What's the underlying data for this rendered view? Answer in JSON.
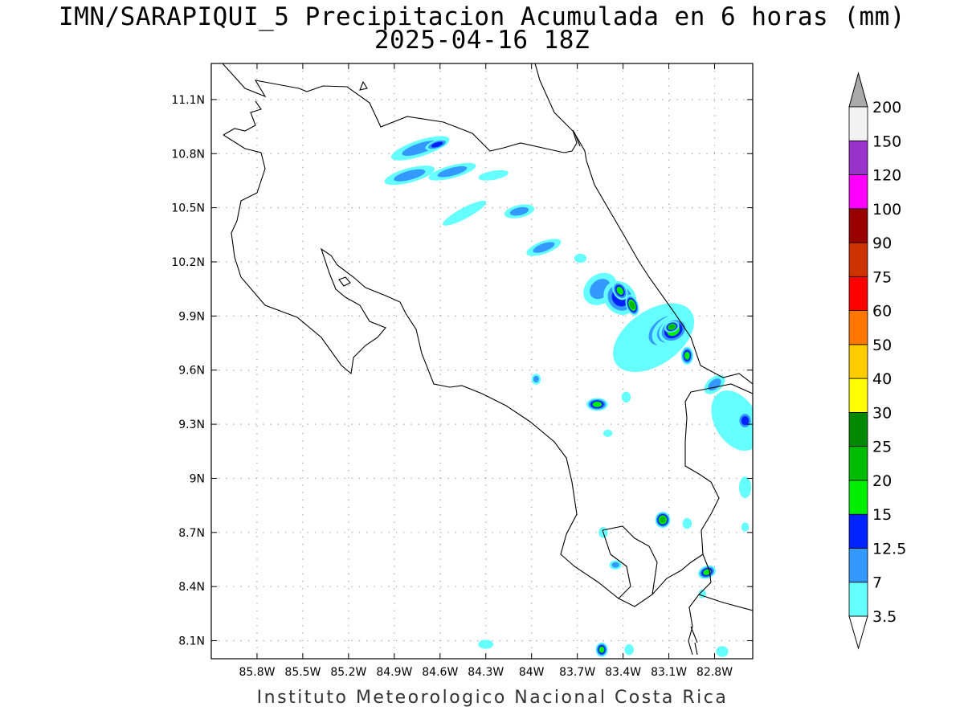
{
  "title": "IMN/SARAPIQUI_5 Precipitacion Acumulada en 6 horas (mm)",
  "subtitle": "2025-04-16 18Z",
  "credit": "Instituto Meteorologico Nacional Costa Rica",
  "map": {
    "lon_range": [
      -86.1,
      -82.55
    ],
    "lat_range": [
      8.0,
      11.3
    ],
    "lat_ticks": [
      {
        "value": 11.1,
        "label": "11.1N"
      },
      {
        "value": 10.8,
        "label": "10.8N"
      },
      {
        "value": 10.5,
        "label": "10.5N"
      },
      {
        "value": 10.2,
        "label": "10.2N"
      },
      {
        "value": 9.9,
        "label": "9.9N"
      },
      {
        "value": 9.6,
        "label": "9.6N"
      },
      {
        "value": 9.3,
        "label": "9.3N"
      },
      {
        "value": 9.0,
        "label": "9N"
      },
      {
        "value": 8.7,
        "label": "8.7N"
      },
      {
        "value": 8.4,
        "label": "8.4N"
      },
      {
        "value": 8.1,
        "label": "8.1N"
      }
    ],
    "lon_ticks": [
      {
        "value": -85.8,
        "label": "85.8W"
      },
      {
        "value": -85.5,
        "label": "85.5W"
      },
      {
        "value": -85.2,
        "label": "85.2W"
      },
      {
        "value": -84.9,
        "label": "84.9W"
      },
      {
        "value": -84.6,
        "label": "84.6W"
      },
      {
        "value": -84.3,
        "label": "84.3W"
      },
      {
        "value": -84.0,
        "label": "84W"
      },
      {
        "value": -83.7,
        "label": "83.7W"
      },
      {
        "value": -83.4,
        "label": "83.4W"
      },
      {
        "value": -83.1,
        "label": "83.1W"
      },
      {
        "value": -82.8,
        "label": "82.8W"
      }
    ],
    "grid": "dotted"
  },
  "colorbar": {
    "levels": [
      "3.5",
      "7",
      "12.5",
      "15",
      "20",
      "25",
      "30",
      "40",
      "50",
      "60",
      "75",
      "90",
      "100",
      "120",
      "150",
      "200"
    ],
    "colors": [
      "#66ffff",
      "#3399ff",
      "#0022ff",
      "#00ee00",
      "#00bb00",
      "#008800",
      "#ffff00",
      "#ffcc00",
      "#ff7700",
      "#ff0000",
      "#cc3300",
      "#990000",
      "#ff00ff",
      "#9933cc",
      "#f2f2f2"
    ],
    "under_color": "#ffffff",
    "over_color": "#aaaaaa"
  },
  "precip_cells": [
    {
      "lon": -84.73,
      "lat": 10.83,
      "rx": 0.2,
      "ry": 0.045,
      "rot": -18,
      "level": 1
    },
    {
      "lon": -84.62,
      "lat": 10.85,
      "rx": 0.08,
      "ry": 0.025,
      "rot": -18,
      "level": 2
    },
    {
      "lon": -84.8,
      "lat": 10.68,
      "rx": 0.17,
      "ry": 0.04,
      "rot": -15,
      "level": 1
    },
    {
      "lon": -84.52,
      "lat": 10.7,
      "rx": 0.16,
      "ry": 0.035,
      "rot": -15,
      "level": 1
    },
    {
      "lon": -84.25,
      "lat": 10.68,
      "rx": 0.1,
      "ry": 0.025,
      "rot": -10,
      "level": 0
    },
    {
      "lon": -84.44,
      "lat": 10.47,
      "rx": 0.16,
      "ry": 0.03,
      "rot": -28,
      "level": 0
    },
    {
      "lon": -84.08,
      "lat": 10.48,
      "rx": 0.1,
      "ry": 0.035,
      "rot": -12,
      "level": 1
    },
    {
      "lon": -83.92,
      "lat": 10.28,
      "rx": 0.12,
      "ry": 0.035,
      "rot": -20,
      "level": 1
    },
    {
      "lon": -83.68,
      "lat": 10.22,
      "rx": 0.04,
      "ry": 0.025,
      "rot": 0,
      "level": 0
    },
    {
      "lon": -83.55,
      "lat": 10.05,
      "rx": 0.12,
      "ry": 0.08,
      "rot": -40,
      "level": 1
    },
    {
      "lon": -83.42,
      "lat": 10.0,
      "rx": 0.1,
      "ry": 0.1,
      "rot": -40,
      "level": 2
    },
    {
      "lon": -83.42,
      "lat": 10.04,
      "rx": 0.045,
      "ry": 0.055,
      "rot": -30,
      "level": 3
    },
    {
      "lon": -83.34,
      "lat": 9.96,
      "rx": 0.04,
      "ry": 0.06,
      "rot": -20,
      "level": 4
    },
    {
      "lon": -83.2,
      "lat": 9.78,
      "rx": 0.3,
      "ry": 0.15,
      "rot": -35,
      "level": 0
    },
    {
      "lon": -83.12,
      "lat": 9.82,
      "rx": 0.2,
      "ry": 0.11,
      "rot": -35,
      "level": 1
    },
    {
      "lon": -83.08,
      "lat": 9.82,
      "rx": 0.14,
      "ry": 0.08,
      "rot": -30,
      "level": 2
    },
    {
      "lon": -83.07,
      "lat": 9.82,
      "rx": 0.1,
      "ry": 0.065,
      "rot": -30,
      "level": 3
    },
    {
      "lon": -83.08,
      "lat": 9.84,
      "rx": 0.05,
      "ry": 0.03,
      "rot": -20,
      "level": 4
    },
    {
      "lon": -82.98,
      "lat": 9.68,
      "rx": 0.04,
      "ry": 0.05,
      "rot": 0,
      "level": 3
    },
    {
      "lon": -82.8,
      "lat": 9.52,
      "rx": 0.08,
      "ry": 0.04,
      "rot": -40,
      "level": 1
    },
    {
      "lon": -82.66,
      "lat": 9.32,
      "rx": 0.14,
      "ry": 0.18,
      "rot": -30,
      "level": 0
    },
    {
      "lon": -82.6,
      "lat": 9.32,
      "rx": 0.05,
      "ry": 0.05,
      "rot": 0,
      "level": 2
    },
    {
      "lon": -82.6,
      "lat": 8.95,
      "rx": 0.04,
      "ry": 0.06,
      "rot": 0,
      "level": 0
    },
    {
      "lon": -83.97,
      "lat": 9.55,
      "rx": 0.03,
      "ry": 0.03,
      "rot": 0,
      "level": 1
    },
    {
      "lon": -83.57,
      "lat": 9.41,
      "rx": 0.07,
      "ry": 0.035,
      "rot": 0,
      "level": 3
    },
    {
      "lon": -83.5,
      "lat": 9.25,
      "rx": 0.03,
      "ry": 0.02,
      "rot": 0,
      "level": 0
    },
    {
      "lon": -83.38,
      "lat": 9.45,
      "rx": 0.03,
      "ry": 0.03,
      "rot": 0,
      "level": 0
    },
    {
      "lon": -83.14,
      "lat": 8.77,
      "rx": 0.05,
      "ry": 0.045,
      "rot": 0,
      "level": 4
    },
    {
      "lon": -82.98,
      "lat": 8.75,
      "rx": 0.03,
      "ry": 0.03,
      "rot": 0,
      "level": 0
    },
    {
      "lon": -82.85,
      "lat": 8.48,
      "rx": 0.06,
      "ry": 0.035,
      "rot": -20,
      "level": 3
    },
    {
      "lon": -83.45,
      "lat": 8.52,
      "rx": 0.04,
      "ry": 0.025,
      "rot": 0,
      "level": 1
    },
    {
      "lon": -83.53,
      "lat": 8.7,
      "rx": 0.03,
      "ry": 0.03,
      "rot": 0,
      "level": 0
    },
    {
      "lon": -84.3,
      "lat": 8.08,
      "rx": 0.05,
      "ry": 0.025,
      "rot": 0,
      "level": 0
    },
    {
      "lon": -83.54,
      "lat": 8.05,
      "rx": 0.04,
      "ry": 0.04,
      "rot": 0,
      "level": 3
    },
    {
      "lon": -83.36,
      "lat": 8.05,
      "rx": 0.03,
      "ry": 0.03,
      "rot": 0,
      "level": 0
    },
    {
      "lon": -82.75,
      "lat": 8.04,
      "rx": 0.04,
      "ry": 0.03,
      "rot": 0,
      "level": 0
    },
    {
      "lon": -82.88,
      "lat": 8.36,
      "rx": 0.025,
      "ry": 0.025,
      "rot": 0,
      "level": 0
    },
    {
      "lon": -82.6,
      "lat": 8.73,
      "rx": 0.025,
      "ry": 0.025,
      "rot": 0,
      "level": 0
    }
  ]
}
